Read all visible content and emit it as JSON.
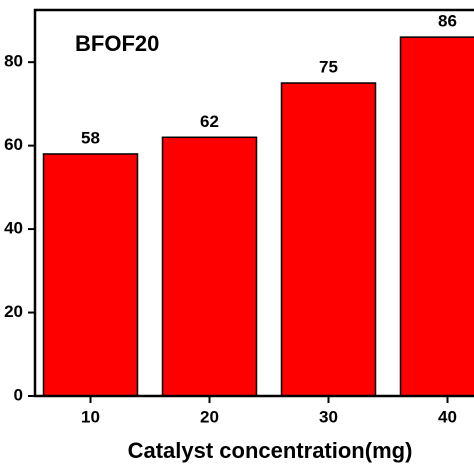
{
  "chart_data": {
    "type": "bar",
    "title": "BFOF20",
    "x_label": "Catalyst concentration(mg)",
    "categories": [
      "10",
      "20",
      "30",
      "40"
    ],
    "values": [
      58,
      62,
      75,
      86
    ],
    "color": "#ff0000",
    "ylim": [
      0,
      92.5
    ],
    "yticks": [
      0,
      20,
      40,
      60,
      80
    ]
  }
}
